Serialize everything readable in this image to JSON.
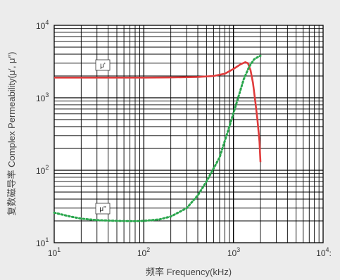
{
  "chart_data": {
    "type": "line",
    "x_scale": "log",
    "y_scale": "log",
    "xlim": [
      10,
      10000
    ],
    "ylim": [
      10,
      10000
    ],
    "grid": true,
    "xlabel": "频率 Frequency(kHz)",
    "ylabel": "复数磁导率 Complex Permeability(μ′, μ″)",
    "x_ticks": [
      {
        "base": "10",
        "exp": "1"
      },
      {
        "base": "10",
        "exp": "2"
      },
      {
        "base": "10",
        "exp": "3"
      },
      {
        "base": "10",
        "exp": "4"
      }
    ],
    "x_tick_suffix": ":",
    "y_ticks": [
      {
        "base": "10",
        "exp": "1"
      },
      {
        "base": "10",
        "exp": "2"
      },
      {
        "base": "10",
        "exp": "3"
      },
      {
        "base": "10",
        "exp": "4"
      }
    ],
    "series": [
      {
        "name": "μ'",
        "color": "#e03c3c",
        "style": "solid",
        "points": [
          [
            10,
            1900
          ],
          [
            20,
            1900
          ],
          [
            50,
            1900
          ],
          [
            100,
            1900
          ],
          [
            200,
            1910
          ],
          [
            400,
            1940
          ],
          [
            600,
            2000
          ],
          [
            800,
            2150
          ],
          [
            1000,
            2500
          ],
          [
            1200,
            2900
          ],
          [
            1350,
            3100
          ],
          [
            1450,
            3000
          ],
          [
            1550,
            2400
          ],
          [
            1650,
            1600
          ],
          [
            1750,
            900
          ],
          [
            1850,
            500
          ],
          [
            1950,
            250
          ],
          [
            2000,
            130
          ]
        ]
      },
      {
        "name": "μ\"",
        "color": "#2aa64d",
        "style": "dotted",
        "points": [
          [
            10,
            26
          ],
          [
            15,
            23
          ],
          [
            20,
            21.5
          ],
          [
            30,
            20.5
          ],
          [
            50,
            20
          ],
          [
            80,
            19.8
          ],
          [
            100,
            20
          ],
          [
            150,
            21
          ],
          [
            200,
            23
          ],
          [
            300,
            30
          ],
          [
            400,
            45
          ],
          [
            500,
            70
          ],
          [
            700,
            150
          ],
          [
            900,
            400
          ],
          [
            1100,
            900
          ],
          [
            1300,
            1800
          ],
          [
            1500,
            2700
          ],
          [
            1700,
            3400
          ],
          [
            1900,
            3700
          ],
          [
            2000,
            3800
          ]
        ]
      }
    ]
  }
}
